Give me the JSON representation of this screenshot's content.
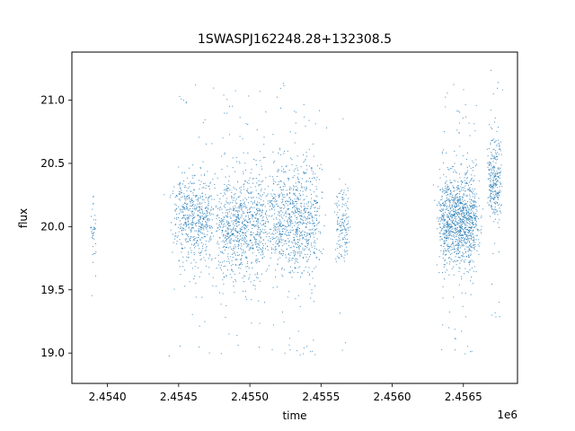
{
  "chart_data": {
    "type": "scatter",
    "title": "1SWASPJ162248.28+132308.5",
    "xlabel": "time",
    "ylabel": "flux",
    "x_offset_label": "1e6",
    "x_ticks": [
      {
        "value": 2.454,
        "label": "2.4540"
      },
      {
        "value": 2.4545,
        "label": "2.4545"
      },
      {
        "value": 2.455,
        "label": "2.4550"
      },
      {
        "value": 2.4555,
        "label": "2.4555"
      },
      {
        "value": 2.456,
        "label": "2.4560"
      },
      {
        "value": 2.4565,
        "label": "2.4565"
      }
    ],
    "y_ticks": [
      {
        "value": 19.0,
        "label": "19.0"
      },
      {
        "value": 19.5,
        "label": "19.5"
      },
      {
        "value": 20.0,
        "label": "20.0"
      },
      {
        "value": 20.5,
        "label": "20.5"
      },
      {
        "value": 21.0,
        "label": "21.0"
      }
    ],
    "xlim": [
      2.45375,
      2.45688
    ],
    "ylim": [
      18.76,
      21.38
    ],
    "grid": false,
    "marker_color": "#1f77b4",
    "clusters": [
      {
        "x_center": 2.4539,
        "x_width": 2e-05,
        "y_center": 20.0,
        "y_spread": 0.25,
        "n": 40
      },
      {
        "x_center": 2.4546,
        "x_width": 0.00012,
        "y_center": 20.05,
        "y_spread": 0.35,
        "n": 600
      },
      {
        "x_center": 2.45495,
        "x_width": 0.00016,
        "y_center": 20.0,
        "y_spread": 0.4,
        "n": 900
      },
      {
        "x_center": 2.45532,
        "x_width": 0.00016,
        "y_center": 20.05,
        "y_spread": 0.45,
        "n": 900
      },
      {
        "x_center": 2.45565,
        "x_width": 4e-05,
        "y_center": 20.0,
        "y_spread": 0.3,
        "n": 150
      },
      {
        "x_center": 2.45647,
        "x_width": 0.00012,
        "y_center": 20.05,
        "y_spread": 0.35,
        "n": 1200
      },
      {
        "x_center": 2.45672,
        "x_width": 4e-05,
        "y_center": 20.35,
        "y_spread": 0.35,
        "n": 300
      }
    ]
  }
}
